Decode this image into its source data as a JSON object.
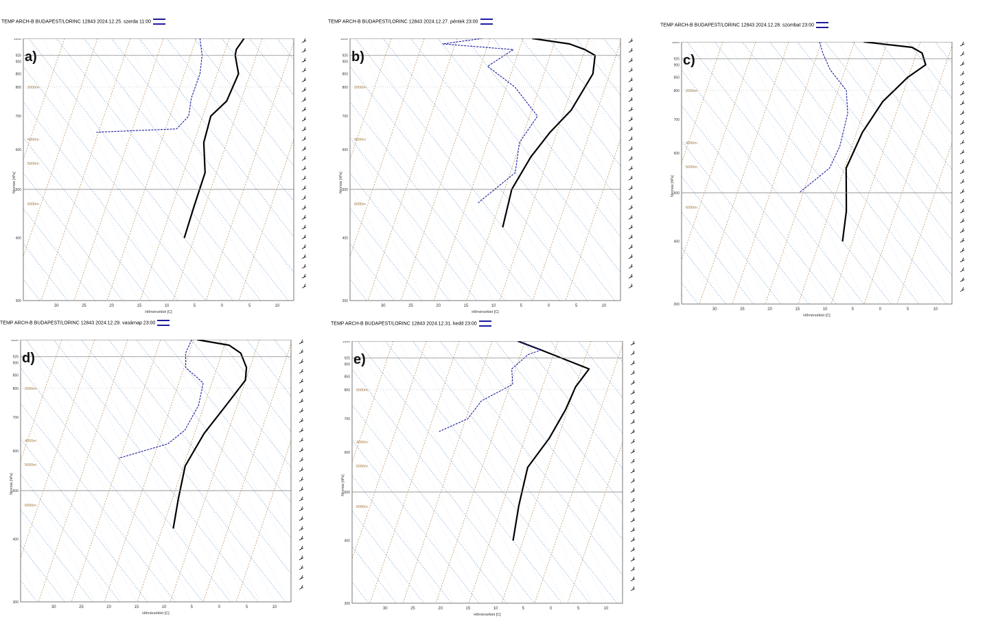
{
  "colors": {
    "temperature": "#000000",
    "dewpoint": "#1a1aa0",
    "isotherm": "#2a6fb0",
    "dry_adiabat": "#b08a50",
    "isobar": "#888888"
  },
  "x_axis_label": "Hőmérséklet [C]",
  "y_axis_label": "Nyomás [hPa]",
  "x_tick_labels": [
    "30",
    "25",
    "20",
    "15",
    "10",
    "5",
    "0",
    "5",
    "10"
  ],
  "y_tick_labels": [
    "300",
    "400",
    "500",
    "600",
    "700",
    "800",
    "850",
    "900",
    "925",
    "1000"
  ],
  "panels": [
    {
      "letter": "a)",
      "title": "TEMP  ARCH-B BUDAPEST/LORINC 12843 2024.12.25. szerda 11:00",
      "height_labels": [
        "6000m",
        "5000m",
        "4000m",
        "2000m"
      ]
    },
    {
      "letter": "b)",
      "title": "TEMP  ARCH-B BUDAPEST/LORINC 12843 2024.12.27. péntek 23:00",
      "height_labels": [
        "6000m",
        "4000m",
        "2000m"
      ]
    },
    {
      "letter": "c)",
      "title": "TEMP  ARCH-B BUDAPEST/LORINC 12843 2024.12.28. szombat 23:00",
      "height_labels": [
        "6000m",
        "5000m",
        "4000m",
        "2000m"
      ]
    },
    {
      "letter": "d)",
      "title": "TEMP  ARCH-B BUDAPEST/LORINC 12843 2024.12.29. vasárnap 23:00",
      "height_labels": [
        "6000m",
        "5000m",
        "4000m",
        "2000m"
      ]
    },
    {
      "letter": "e)",
      "title": "TEMP  ARCH-B BUDAPEST/LORINC 12843 2024.12.31. kedd 23:00",
      "height_labels": [
        "6000m",
        "5000m",
        "4000m",
        "2000m"
      ]
    }
  ],
  "chart_data": [
    {
      "type": "line",
      "panel": "a)",
      "xlabel": "Hőmérséklet [C]",
      "ylabel": "Nyomás [hPa]",
      "series": [
        {
          "name": "",
          "values": [
            [
              4,
              1000
            ],
            [
              1,
              950
            ],
            [
              0,
              925
            ],
            [
              -2,
              850
            ],
            [
              -8,
              750
            ],
            [
              -13,
              700
            ],
            [
              -18,
              620
            ],
            [
              -22,
              540
            ],
            [
              -29,
              460
            ],
            [
              -35,
              400
            ]
          ]
        },
        {
          "name": "",
          "values": [
            [
              -4,
              1000
            ],
            [
              -6,
              925
            ],
            [
              -9,
              850
            ],
            [
              -14,
              760
            ],
            [
              -17,
              700
            ],
            [
              -21,
              660
            ],
            [
              -36,
              650
            ]
          ]
        }
      ]
    },
    {
      "type": "line",
      "panel": "b)",
      "xlabel": "Hőmérséklet [C]",
      "ylabel": "Nyomás [hPa]",
      "series": [
        {
          "name": "",
          "values": [
            [
              -3,
              1000
            ],
            [
              3,
              975
            ],
            [
              5,
              950
            ],
            [
              6,
              925
            ],
            [
              3,
              850
            ],
            [
              -6,
              720
            ],
            [
              -13,
              650
            ],
            [
              -20,
              580
            ],
            [
              -28,
              500
            ],
            [
              -35,
              420
            ]
          ]
        },
        {
          "name": "",
          "values": [
            [
              -12,
              1000
            ],
            [
              -20,
              975
            ],
            [
              -8,
              950
            ],
            [
              -15,
              880
            ],
            [
              -13,
              800
            ],
            [
              -13,
              700
            ],
            [
              -20,
              620
            ],
            [
              -25,
              540
            ],
            [
              -36,
              470
            ]
          ]
        }
      ]
    },
    {
      "type": "line",
      "panel": "c)",
      "xlabel": "Hőmérséklet [C]",
      "ylabel": "Nyomás [hPa]",
      "series": [
        {
          "name": "",
          "values": [
            [
              -3,
              1000
            ],
            [
              5,
              975
            ],
            [
              6,
              950
            ],
            [
              5,
              900
            ],
            [
              0,
              850
            ],
            [
              -8,
              760
            ],
            [
              -16,
              660
            ],
            [
              -24,
              560
            ],
            [
              -30,
              460
            ],
            [
              -35,
              400
            ]
          ]
        },
        {
          "name": "",
          "values": [
            [
              -11,
              1000
            ],
            [
              -12,
              950
            ],
            [
              -13,
              880
            ],
            [
              -13,
              800
            ],
            [
              -16,
              720
            ],
            [
              -22,
              620
            ],
            [
              -27,
              560
            ],
            [
              -36,
              500
            ]
          ]
        }
      ]
    },
    {
      "type": "line",
      "panel": "d)",
      "xlabel": "Hőmérséklet [C]",
      "ylabel": "Nyomás [hPa]",
      "series": [
        {
          "name": "",
          "values": [
            [
              -4,
              1000
            ],
            [
              1,
              975
            ],
            [
              2,
              940
            ],
            [
              1,
              880
            ],
            [
              -1,
              830
            ],
            [
              -8,
              740
            ],
            [
              -16,
              650
            ],
            [
              -24,
              560
            ],
            [
              -30,
              480
            ],
            [
              -35,
              420
            ]
          ]
        },
        {
          "name": "",
          "values": [
            [
              -5,
              1000
            ],
            [
              -8,
              940
            ],
            [
              -10,
              880
            ],
            [
              -9,
              820
            ],
            [
              -13,
              740
            ],
            [
              -19,
              660
            ],
            [
              -24,
              620
            ],
            [
              -35,
              580
            ]
          ]
        }
      ]
    },
    {
      "type": "line",
      "panel": "e)",
      "xlabel": "Hőmérséklet [C]",
      "ylabel": "Nyomás [hPa]",
      "series": [
        {
          "name": "",
          "values": [
            [
              -6,
              1000
            ],
            [
              -3,
              960
            ],
            [
              3,
              880
            ],
            [
              -2,
              810
            ],
            [
              -7,
              730
            ],
            [
              -14,
              640
            ],
            [
              -22,
              560
            ],
            [
              -29,
              470
            ],
            [
              -35,
              400
            ]
          ]
        },
        {
          "name": "",
          "values": [
            [
              -6,
              1000
            ],
            [
              -3,
              960
            ],
            [
              -6,
              940
            ],
            [
              -11,
              880
            ],
            [
              -13,
              820
            ],
            [
              -21,
              760
            ],
            [
              -26,
              700
            ],
            [
              -33,
              660
            ]
          ]
        }
      ]
    }
  ]
}
